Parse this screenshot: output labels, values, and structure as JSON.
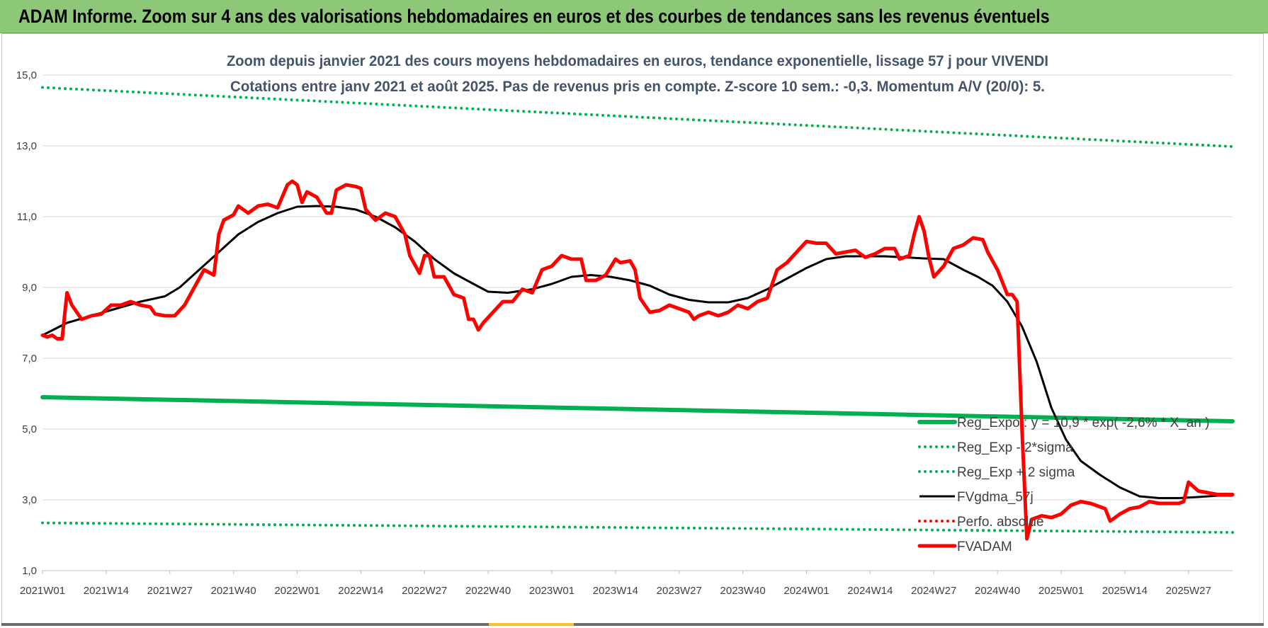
{
  "header": {
    "title": "ADAM Informe. Zoom sur 4 ans des valorisations hebdomadaires en euros et des courbes de tendances sans les revenus éventuels"
  },
  "colors": {
    "header_bg": "#8dc878",
    "green": "#00b050",
    "red": "#ff0000",
    "black": "#000000",
    "gridline": "#d9d9d9"
  },
  "chart_data": {
    "type": "line",
    "title_lines": [
      "Zoom depuis janvier 2021 des cours moyens hebdomadaires en euros, tendance exponentielle, lissage 57 j pour VIVENDI",
      "Cotations entre janv 2021 et août 2025.  Pas de revenus pris en compte. Z-score 10 sem.: -0,3. Momentum A/V (20/0): 5."
    ],
    "xlabel": "",
    "ylabel": "",
    "ylim": [
      1.0,
      15.0
    ],
    "y_ticks": [
      "1,0",
      "3,0",
      "5,0",
      "7,0",
      "9,0",
      "11,0",
      "13,0",
      "15,0"
    ],
    "y_tick_values": [
      1,
      3,
      5,
      7,
      9,
      11,
      13,
      15
    ],
    "x_ticks": [
      "2021W01",
      "2021W14",
      "2021W27",
      "2021W40",
      "2022W01",
      "2022W14",
      "2022W27",
      "2022W40",
      "2023W01",
      "2023W14",
      "2023W27",
      "2023W40",
      "2024W01",
      "2024W14",
      "2024W27",
      "2024W40",
      "2025W01",
      "2025W14",
      "2025W27"
    ],
    "x_tick_weeks": [
      0,
      13,
      26,
      39,
      52,
      65,
      78,
      91,
      104,
      117,
      130,
      143,
      156,
      169,
      182,
      195,
      208,
      221,
      234
    ],
    "x_range_weeks": [
      0,
      243
    ],
    "grid": "horizontal",
    "legend_position": "bottom-right",
    "series": [
      {
        "name": "Reg_Expo : y = 10,9 * exp( -2,6% * X_an )",
        "color": "#00b050",
        "style": "solid-thick",
        "points": [
          [
            0,
            5.9
          ],
          [
            243,
            5.22
          ]
        ]
      },
      {
        "name": "Reg_Exp - 2*sigma",
        "color": "#00b050",
        "style": "dotted",
        "points": [
          [
            0,
            2.35
          ],
          [
            243,
            2.08
          ]
        ]
      },
      {
        "name": "Reg_Exp + 2 sigma",
        "color": "#00b050",
        "style": "dotted",
        "points": [
          [
            0,
            14.65
          ],
          [
            243,
            12.98
          ]
        ]
      },
      {
        "name": "FVgdma_57j",
        "color": "#000000",
        "style": "solid",
        "points": [
          [
            0,
            7.65
          ],
          [
            5,
            8.0
          ],
          [
            10,
            8.2
          ],
          [
            15,
            8.4
          ],
          [
            20,
            8.6
          ],
          [
            25,
            8.75
          ],
          [
            28,
            9.0
          ],
          [
            32,
            9.5
          ],
          [
            36,
            10.0
          ],
          [
            40,
            10.5
          ],
          [
            44,
            10.85
          ],
          [
            48,
            11.1
          ],
          [
            52,
            11.28
          ],
          [
            56,
            11.3
          ],
          [
            60,
            11.28
          ],
          [
            64,
            11.2
          ],
          [
            68,
            11.0
          ],
          [
            72,
            10.7
          ],
          [
            76,
            10.3
          ],
          [
            80,
            9.8
          ],
          [
            84,
            9.4
          ],
          [
            88,
            9.1
          ],
          [
            91,
            8.88
          ],
          [
            95,
            8.85
          ],
          [
            100,
            8.95
          ],
          [
            104,
            9.1
          ],
          [
            108,
            9.3
          ],
          [
            112,
            9.35
          ],
          [
            116,
            9.3
          ],
          [
            120,
            9.2
          ],
          [
            124,
            9.05
          ],
          [
            128,
            8.8
          ],
          [
            132,
            8.65
          ],
          [
            136,
            8.58
          ],
          [
            140,
            8.58
          ],
          [
            144,
            8.7
          ],
          [
            148,
            8.95
          ],
          [
            152,
            9.25
          ],
          [
            156,
            9.55
          ],
          [
            160,
            9.8
          ],
          [
            164,
            9.88
          ],
          [
            168,
            9.88
          ],
          [
            172,
            9.88
          ],
          [
            176,
            9.85
          ],
          [
            180,
            9.82
          ],
          [
            184,
            9.8
          ],
          [
            188,
            9.5
          ],
          [
            191,
            9.3
          ],
          [
            194,
            9.05
          ],
          [
            197,
            8.6
          ],
          [
            200,
            7.9
          ],
          [
            203,
            6.9
          ],
          [
            206,
            5.6
          ],
          [
            209,
            4.7
          ],
          [
            212,
            4.1
          ],
          [
            216,
            3.7
          ],
          [
            220,
            3.35
          ],
          [
            224,
            3.1
          ],
          [
            228,
            3.05
          ],
          [
            232,
            3.05
          ],
          [
            236,
            3.08
          ],
          [
            240,
            3.12
          ],
          [
            243,
            3.12
          ]
        ]
      },
      {
        "name": "Perfo. absolue",
        "color": "#ff0000",
        "style": "dotted",
        "points": []
      },
      {
        "name": "FVADAM",
        "color": "#ff0000",
        "style": "solid-thick",
        "points": [
          [
            0,
            7.65
          ],
          [
            1,
            7.6
          ],
          [
            2,
            7.65
          ],
          [
            3,
            7.55
          ],
          [
            4,
            7.55
          ],
          [
            5,
            8.85
          ],
          [
            6,
            8.5
          ],
          [
            7,
            8.3
          ],
          [
            8,
            8.1
          ],
          [
            10,
            8.2
          ],
          [
            12,
            8.25
          ],
          [
            14,
            8.5
          ],
          [
            16,
            8.5
          ],
          [
            18,
            8.6
          ],
          [
            20,
            8.5
          ],
          [
            22,
            8.45
          ],
          [
            23,
            8.25
          ],
          [
            25,
            8.2
          ],
          [
            27,
            8.2
          ],
          [
            29,
            8.5
          ],
          [
            31,
            9.0
          ],
          [
            33,
            9.5
          ],
          [
            35,
            9.35
          ],
          [
            36,
            10.5
          ],
          [
            37,
            10.9
          ],
          [
            39,
            11.05
          ],
          [
            40,
            11.3
          ],
          [
            42,
            11.1
          ],
          [
            44,
            11.3
          ],
          [
            46,
            11.35
          ],
          [
            48,
            11.25
          ],
          [
            50,
            11.9
          ],
          [
            51,
            12.0
          ],
          [
            52,
            11.9
          ],
          [
            53,
            11.4
          ],
          [
            54,
            11.7
          ],
          [
            56,
            11.55
          ],
          [
            58,
            11.1
          ],
          [
            59,
            11.1
          ],
          [
            60,
            11.75
          ],
          [
            62,
            11.9
          ],
          [
            64,
            11.85
          ],
          [
            65,
            11.8
          ],
          [
            66,
            11.2
          ],
          [
            68,
            10.9
          ],
          [
            70,
            11.1
          ],
          [
            72,
            11.0
          ],
          [
            74,
            10.5
          ],
          [
            75,
            9.9
          ],
          [
            77,
            9.4
          ],
          [
            78,
            9.9
          ],
          [
            79,
            9.9
          ],
          [
            80,
            9.3
          ],
          [
            82,
            9.3
          ],
          [
            84,
            8.8
          ],
          [
            86,
            8.7
          ],
          [
            87,
            8.1
          ],
          [
            88,
            8.1
          ],
          [
            89,
            7.8
          ],
          [
            90,
            8.0
          ],
          [
            92,
            8.3
          ],
          [
            94,
            8.6
          ],
          [
            96,
            8.6
          ],
          [
            98,
            8.95
          ],
          [
            100,
            8.85
          ],
          [
            102,
            9.5
          ],
          [
            104,
            9.6
          ],
          [
            106,
            9.9
          ],
          [
            108,
            9.8
          ],
          [
            110,
            9.8
          ],
          [
            111,
            9.2
          ],
          [
            113,
            9.2
          ],
          [
            115,
            9.35
          ],
          [
            117,
            9.8
          ],
          [
            118,
            9.7
          ],
          [
            120,
            9.75
          ],
          [
            121,
            9.5
          ],
          [
            122,
            8.7
          ],
          [
            124,
            8.3
          ],
          [
            126,
            8.35
          ],
          [
            128,
            8.5
          ],
          [
            130,
            8.4
          ],
          [
            132,
            8.3
          ],
          [
            133,
            8.1
          ],
          [
            134,
            8.2
          ],
          [
            136,
            8.3
          ],
          [
            138,
            8.2
          ],
          [
            140,
            8.3
          ],
          [
            142,
            8.5
          ],
          [
            144,
            8.4
          ],
          [
            146,
            8.6
          ],
          [
            148,
            8.7
          ],
          [
            150,
            9.5
          ],
          [
            152,
            9.7
          ],
          [
            154,
            10.0
          ],
          [
            156,
            10.3
          ],
          [
            158,
            10.25
          ],
          [
            160,
            10.25
          ],
          [
            162,
            9.95
          ],
          [
            164,
            10.0
          ],
          [
            166,
            10.05
          ],
          [
            168,
            9.85
          ],
          [
            170,
            9.95
          ],
          [
            172,
            10.1
          ],
          [
            174,
            10.1
          ],
          [
            175,
            9.8
          ],
          [
            177,
            9.9
          ],
          [
            178,
            10.5
          ],
          [
            179,
            11.0
          ],
          [
            180,
            10.6
          ],
          [
            181,
            9.85
          ],
          [
            182,
            9.3
          ],
          [
            184,
            9.6
          ],
          [
            186,
            10.1
          ],
          [
            188,
            10.2
          ],
          [
            190,
            10.4
          ],
          [
            192,
            10.35
          ],
          [
            193,
            10.0
          ],
          [
            195,
            9.5
          ],
          [
            197,
            8.8
          ],
          [
            198,
            8.8
          ],
          [
            199,
            8.6
          ],
          [
            200,
            5.0
          ],
          [
            201,
            1.9
          ],
          [
            202,
            2.45
          ],
          [
            204,
            2.55
          ],
          [
            206,
            2.5
          ],
          [
            208,
            2.6
          ],
          [
            210,
            2.85
          ],
          [
            212,
            2.95
          ],
          [
            214,
            2.9
          ],
          [
            216,
            2.8
          ],
          [
            217,
            2.75
          ],
          [
            218,
            2.4
          ],
          [
            220,
            2.6
          ],
          [
            222,
            2.75
          ],
          [
            224,
            2.8
          ],
          [
            226,
            2.95
          ],
          [
            228,
            2.9
          ],
          [
            230,
            2.9
          ],
          [
            232,
            2.9
          ],
          [
            233,
            2.95
          ],
          [
            234,
            3.5
          ],
          [
            236,
            3.25
          ],
          [
            238,
            3.2
          ],
          [
            240,
            3.15
          ],
          [
            243,
            3.15
          ]
        ]
      }
    ]
  }
}
